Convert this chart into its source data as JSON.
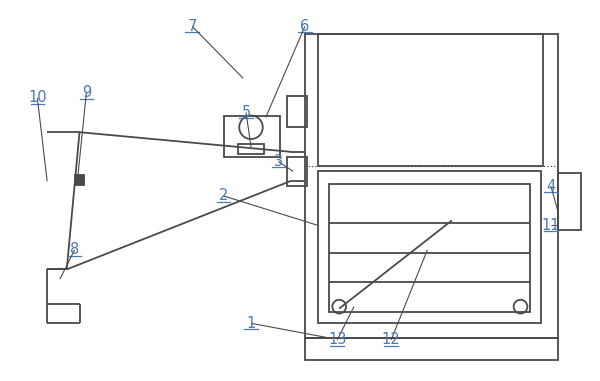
{
  "bg_color": "#ffffff",
  "line_color": "#4a4a4a",
  "label_color": "#4a7ab5",
  "fig_width": 6.0,
  "fig_height": 3.81,
  "dpi": 100
}
